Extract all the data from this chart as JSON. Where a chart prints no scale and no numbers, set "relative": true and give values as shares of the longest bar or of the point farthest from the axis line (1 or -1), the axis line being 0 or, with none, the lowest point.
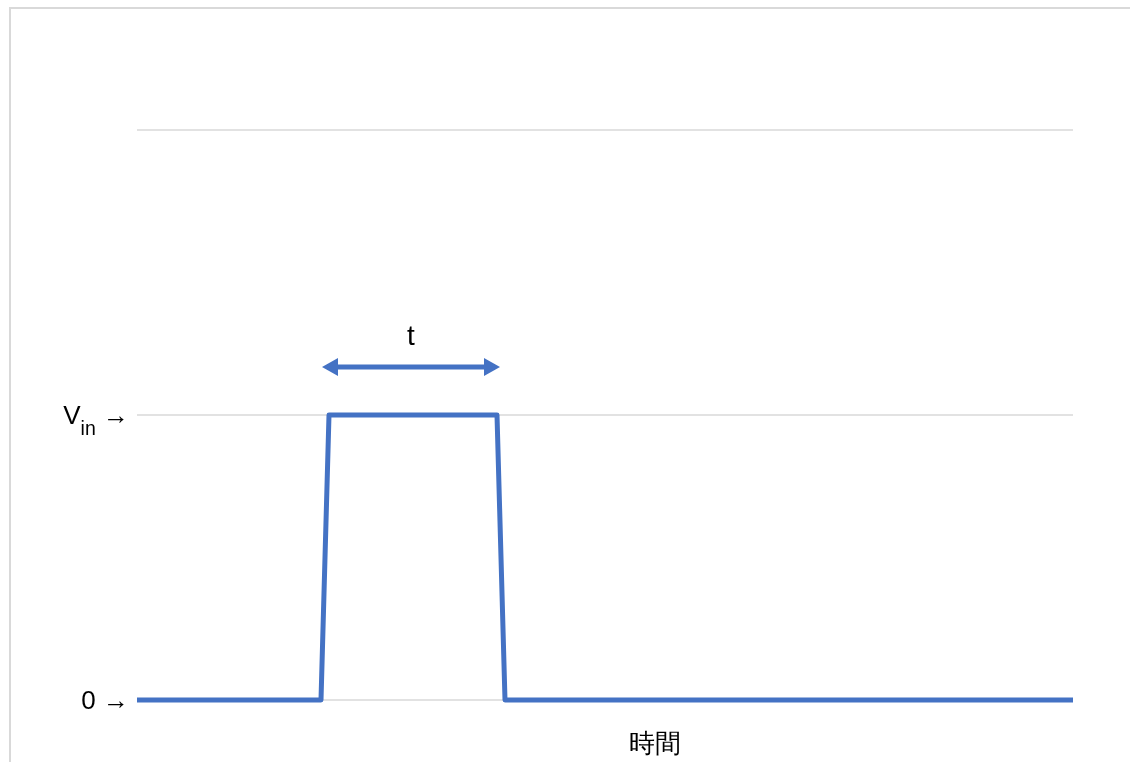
{
  "chart_data": {
    "type": "line",
    "relative": true,
    "xlabel": "時間",
    "annotations": [
      "t"
    ],
    "categories": [
      null,
      null,
      null,
      null,
      null,
      null,
      null,
      null,
      null,
      null,
      null,
      null,
      null,
      null,
      null,
      null,
      null,
      null,
      null,
      null,
      null,
      null,
      null,
      null,
      null,
      null,
      null,
      null,
      null,
      null,
      null,
      null,
      null,
      null,
      null,
      null,
      null,
      null,
      null,
      null,
      null,
      null,
      null,
      null,
      null,
      null,
      null,
      null,
      null,
      null,
      null,
      null,
      null,
      null,
      null,
      null,
      null,
      null,
      null,
      null,
      null,
      null,
      null,
      null,
      null,
      null,
      null,
      null,
      null,
      null,
      null,
      null,
      null,
      null,
      null,
      null,
      null,
      null,
      null,
      null,
      null,
      null,
      null,
      null,
      null,
      null,
      null,
      null,
      null,
      null,
      null,
      null,
      null,
      null,
      null,
      null,
      null,
      null,
      null,
      null,
      null,
      null,
      null,
      null,
      null,
      null,
      null,
      null,
      null,
      null,
      null,
      null,
      null,
      null,
      null,
      null,
      null,
      null
    ],
    "series": [
      {
        "color": "#4472c4",
        "values": [
          0,
          0,
          0,
          0,
          0,
          0,
          0,
          0,
          0,
          0,
          0,
          0,
          0,
          0,
          0,
          0,
          0,
          0,
          0,
          0,
          0,
          0,
          0,
          0,
          1,
          1,
          1,
          1,
          1,
          1,
          1,
          1,
          1,
          1,
          1,
          1,
          1,
          1,
          1,
          1,
          1,
          1,
          1,
          1,
          1,
          1,
          0,
          0,
          0,
          0,
          0,
          0,
          0,
          0,
          0,
          0,
          0,
          0,
          0,
          0,
          0,
          0,
          0,
          0,
          0,
          0,
          0,
          0,
          0,
          0,
          0,
          0,
          0,
          0,
          0,
          0,
          0,
          0,
          0,
          0,
          0,
          0,
          0,
          0,
          0,
          0,
          0,
          0,
          0,
          0,
          0,
          0,
          0,
          0,
          0,
          0,
          0,
          0,
          0,
          0,
          0,
          0,
          0,
          0,
          0,
          0,
          0,
          0,
          0,
          0,
          0,
          0,
          0,
          0,
          0,
          0,
          0,
          0
        ]
      }
    ],
    "ref_lines": [
      {
        "axis": "y",
        "value": 0,
        "label": "0 →",
        "color": "#d9d9d9"
      },
      {
        "axis": "y",
        "value": 1,
        "label": "V$_{in}$ →",
        "color": "#d9d9d9"
      },
      {
        "axis": "y",
        "value": 2,
        "label": null,
        "color": "#d9d9d9"
      }
    ]
  }
}
